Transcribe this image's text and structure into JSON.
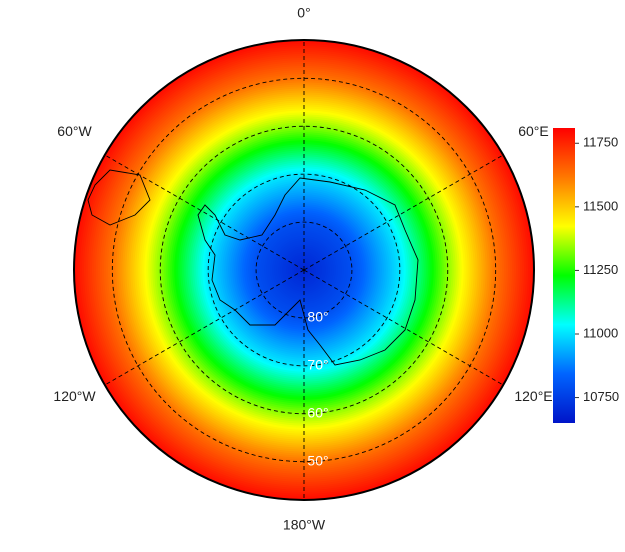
{
  "map": {
    "latlim": [
      -90,
      -42
    ],
    "meridians": [
      {
        "value": 0,
        "label": "0°"
      },
      {
        "value": 60,
        "label": "60°E"
      },
      {
        "value": 120,
        "label": "120°E"
      },
      {
        "value": 180,
        "label": "180°W"
      },
      {
        "value": -120,
        "label": "120°W"
      },
      {
        "value": -60,
        "label": "60°W"
      }
    ],
    "parallels": [
      {
        "value": -80,
        "label": "80°"
      },
      {
        "value": -70,
        "label": "70°"
      },
      {
        "value": -60,
        "label": "60°"
      },
      {
        "value": -50,
        "label": "50°"
      }
    ],
    "field": {
      "lat": [
        -90,
        -80,
        -70,
        -60,
        -50,
        -42
      ],
      "values": [
        10690,
        10790,
        11000,
        11330,
        11620,
        11790
      ]
    },
    "colorbar": {
      "clim": [
        10650,
        11810
      ],
      "ticks": [
        10750,
        11000,
        11250,
        11500,
        11750
      ],
      "colormap": [
        "#0014c8",
        "#0064ff",
        "#00ffff",
        "#00ff00",
        "#ffff00",
        "#ff7800",
        "#ff0000"
      ]
    }
  }
}
